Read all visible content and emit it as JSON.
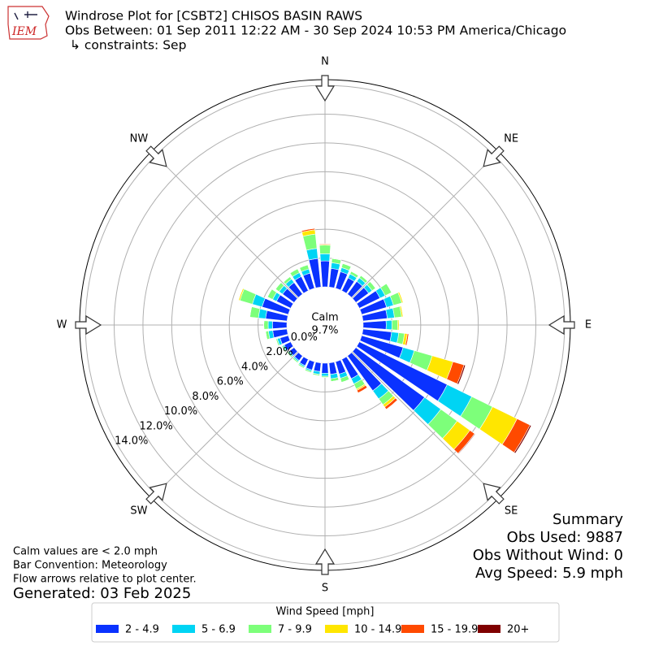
{
  "chart_data": {
    "type": "windrose",
    "title": "Windrose Plot for [CSBT2] CHISOS BASIN RAWS",
    "subtitle": "Obs Between: 01 Sep 2011 12:22 AM - 30 Sep 2024 10:53 PM America/Chicago",
    "constraints": "↳ constraints: Sep",
    "logo": "IEM",
    "x": [
      0,
      10,
      20,
      30,
      40,
      50,
      60,
      70,
      80,
      90,
      100,
      110,
      120,
      130,
      140,
      150,
      160,
      170,
      180,
      190,
      200,
      210,
      220,
      230,
      240,
      250,
      260,
      270,
      280,
      290,
      300,
      310,
      320,
      330,
      340,
      350
    ],
    "compass": [
      {
        "value": 0,
        "label": "N"
      },
      {
        "value": 45,
        "label": "NE"
      },
      {
        "value": 90,
        "label": "E"
      },
      {
        "value": 135,
        "label": "SE"
      },
      {
        "value": 180,
        "label": "S"
      },
      {
        "value": 225,
        "label": "SW"
      },
      {
        "value": 270,
        "label": "W"
      },
      {
        "value": 315,
        "label": "NW"
      }
    ],
    "ylim": [
      0,
      14.4
    ],
    "yticks": [
      {
        "value": 0,
        "label": "0.0%"
      },
      {
        "value": 2,
        "label": "2.0%"
      },
      {
        "value": 4,
        "label": "4.0%"
      },
      {
        "value": 6,
        "label": "6.0%"
      },
      {
        "value": 8,
        "label": "8.0%"
      },
      {
        "value": 10,
        "label": "10.0%"
      },
      {
        "value": 12,
        "label": "12.0%"
      },
      {
        "value": 14,
        "label": "14.0%"
      }
    ],
    "grid": true,
    "calm_label": "Calm",
    "calm": 9.7,
    "calm_value_label": "9.7%",
    "legend_title": "Wind Speed [mph]",
    "series": [
      {
        "name": "2 - 4.9",
        "color": "#0a32ff",
        "values": [
          1.8,
          1.3,
          1.2,
          1.0,
          1.1,
          1.1,
          1.6,
          1.8,
          1.7,
          1.6,
          2.0,
          3.0,
          6.8,
          5.9,
          3.0,
          1.5,
          0.9,
          0.8,
          0.7,
          0.6,
          0.6,
          0.5,
          0.4,
          0.4,
          0.5,
          0.6,
          1.0,
          1.0,
          1.5,
          1.9,
          1.1,
          1.0,
          1.0,
          1.1,
          1.1,
          2.0
        ]
      },
      {
        "name": "5 - 6.9",
        "color": "#00d4f4",
        "values": [
          0.5,
          0.4,
          0.3,
          0.3,
          0.3,
          0.3,
          0.4,
          0.5,
          0.5,
          0.4,
          0.5,
          0.8,
          1.9,
          1.4,
          0.7,
          0.4,
          0.3,
          0.3,
          0.2,
          0.2,
          0.1,
          0.1,
          0.1,
          0.1,
          0.1,
          0.2,
          0.3,
          0.3,
          0.5,
          0.7,
          0.3,
          0.3,
          0.3,
          0.3,
          0.3,
          0.7
        ]
      },
      {
        "name": "7 - 9.9",
        "color": "#7dff7a",
        "values": [
          0.6,
          0.3,
          0.3,
          0.2,
          0.2,
          0.3,
          0.5,
          0.6,
          0.5,
          0.4,
          0.4,
          1.3,
          1.6,
          1.4,
          0.5,
          0.4,
          0.3,
          0.2,
          0.1,
          0.1,
          0.1,
          0.1,
          0.1,
          0.1,
          0.1,
          0.1,
          0.2,
          0.3,
          0.6,
          0.9,
          0.4,
          0.3,
          0.2,
          0.3,
          0.3,
          1.0
        ]
      },
      {
        "name": "10 - 14.9",
        "color": "#ffe600",
        "values": [
          0.05,
          0,
          0,
          0,
          0,
          0,
          0,
          0.1,
          0.1,
          0.1,
          0.2,
          1.5,
          1.9,
          1.1,
          0.2,
          0.1,
          0,
          0,
          0,
          0,
          0,
          0,
          0,
          0,
          0,
          0,
          0,
          0,
          0,
          0.1,
          0,
          0,
          0,
          0,
          0,
          0.3
        ]
      },
      {
        "name": "15 - 19.9",
        "color": "#ff4a00",
        "values": [
          0.05,
          0,
          0,
          0,
          0,
          0,
          0,
          0,
          0,
          0,
          0.1,
          0.8,
          1.0,
          0.4,
          0.2,
          0.2,
          0,
          0,
          0,
          0,
          0,
          0,
          0,
          0,
          0,
          0,
          0,
          0,
          0,
          0,
          0,
          0,
          0,
          0,
          0,
          0.1
        ]
      },
      {
        "name": "20+",
        "color": "#7f0000",
        "values": [
          0,
          0,
          0,
          0,
          0,
          0,
          0,
          0,
          0,
          0,
          0,
          0.1,
          0.1,
          0.05,
          0,
          0,
          0,
          0,
          0,
          0,
          0,
          0,
          0,
          0,
          0,
          0,
          0,
          0,
          0,
          0,
          0,
          0,
          0,
          0,
          0,
          0
        ]
      }
    ],
    "summary": [
      "Summary",
      "Obs Used: 9887",
      "Obs Without Wind: 0",
      "Avg Speed: 5.9 mph"
    ],
    "notes": [
      "Calm values are < 2.0 mph",
      "Bar Convention: Meteorology",
      "Flow arrows relative to plot center."
    ],
    "generated": "Generated: 03 Feb 2025"
  }
}
